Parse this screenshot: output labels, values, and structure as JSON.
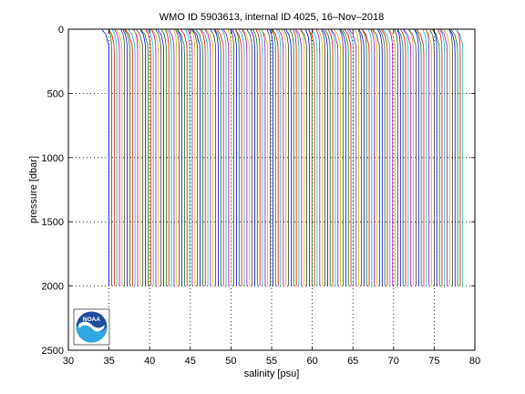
{
  "chart_data": {
    "type": "line",
    "title": "WMO ID 5903613, internal ID 4025, 16–Nov–2018",
    "xlabel": "salinity [psu]",
    "ylabel": "pressure [dbar]",
    "xlim": [
      30,
      80
    ],
    "ylim": [
      0,
      2500
    ],
    "y_reversed": true,
    "grid": "dotted",
    "xticks": [
      30,
      35,
      40,
      45,
      50,
      55,
      60,
      65,
      70,
      75,
      80
    ],
    "yticks": [
      0,
      500,
      1000,
      1500,
      2000,
      2500
    ],
    "profiles": {
      "count": 137,
      "first_offset_psu": 35.0,
      "offset_step_psu": 0.32,
      "max_pressure_dbar": 2000,
      "surface_salinity_anomaly_psu": -0.9,
      "colors": [
        "#0000ff",
        "#008000",
        "#ff0000",
        "#00bfbf",
        "#bf00bf",
        "#bfbf00",
        "#404040"
      ]
    }
  },
  "logo": {
    "text": "NOAA"
  }
}
